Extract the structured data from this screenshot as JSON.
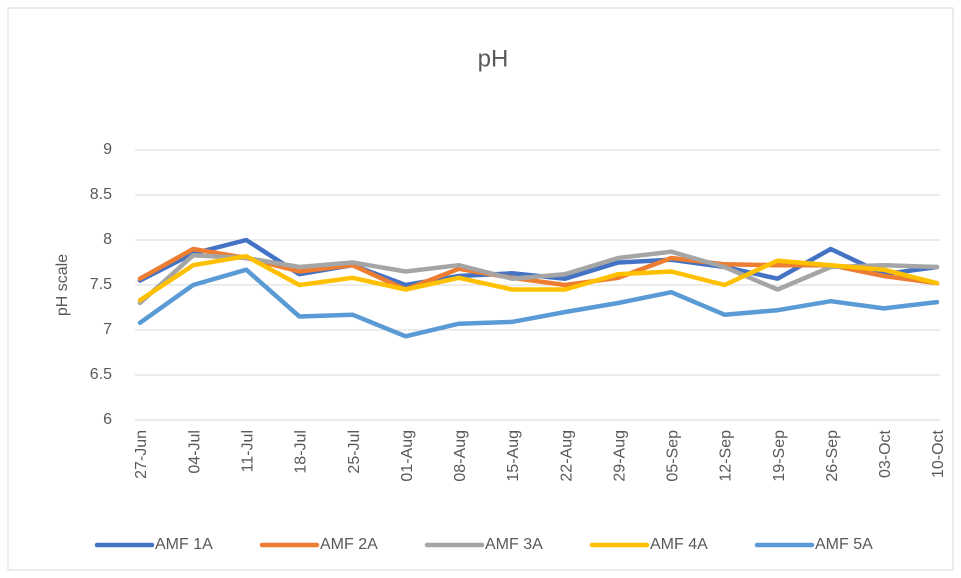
{
  "chart_data": {
    "type": "line",
    "title": "pH",
    "y_label": "pH scale",
    "categories": [
      "27-Jun",
      "04-Jul",
      "11-Jul",
      "18-Jul",
      "25-Jul",
      "01-Aug",
      "08-Aug",
      "15-Aug",
      "22-Aug",
      "29-Aug",
      "05-Sep",
      "12-Sep",
      "19-Sep",
      "26-Sep",
      "03-Oct",
      "10-Oct"
    ],
    "series": [
      {
        "name": "AMF 1A",
        "color": "#4472c4",
        "values": [
          7.55,
          7.85,
          8.0,
          7.62,
          7.72,
          7.5,
          7.6,
          7.63,
          7.57,
          7.75,
          7.78,
          7.7,
          7.57,
          7.9,
          7.62,
          7.7
        ]
      },
      {
        "name": "AMF 2A",
        "color": "#ed7d31",
        "values": [
          7.57,
          7.9,
          7.8,
          7.65,
          7.72,
          7.45,
          7.68,
          7.58,
          7.5,
          7.58,
          7.8,
          7.73,
          7.72,
          7.72,
          7.6,
          7.52
        ]
      },
      {
        "name": "AMF 3A",
        "color": "#a5a5a5",
        "values": [
          7.3,
          7.83,
          7.8,
          7.7,
          7.75,
          7.65,
          7.72,
          7.57,
          7.62,
          7.8,
          7.87,
          7.7,
          7.45,
          7.7,
          7.72,
          7.7
        ]
      },
      {
        "name": "AMF 4A",
        "color": "#ffc000",
        "values": [
          7.33,
          7.72,
          7.82,
          7.5,
          7.58,
          7.45,
          7.58,
          7.45,
          7.45,
          7.62,
          7.65,
          7.5,
          7.77,
          7.72,
          7.67,
          7.52
        ]
      },
      {
        "name": "AMF 5A",
        "color": "#5b9bd5",
        "values": [
          7.08,
          7.5,
          7.67,
          7.15,
          7.17,
          6.93,
          7.07,
          7.09,
          7.2,
          7.3,
          7.42,
          7.17,
          7.22,
          7.32,
          7.24,
          7.31
        ]
      }
    ],
    "ylim": [
      6,
      9
    ],
    "yticks": [
      6,
      6.5,
      7,
      7.5,
      8,
      8.5,
      9
    ],
    "grid": true,
    "legend": "bottom"
  }
}
